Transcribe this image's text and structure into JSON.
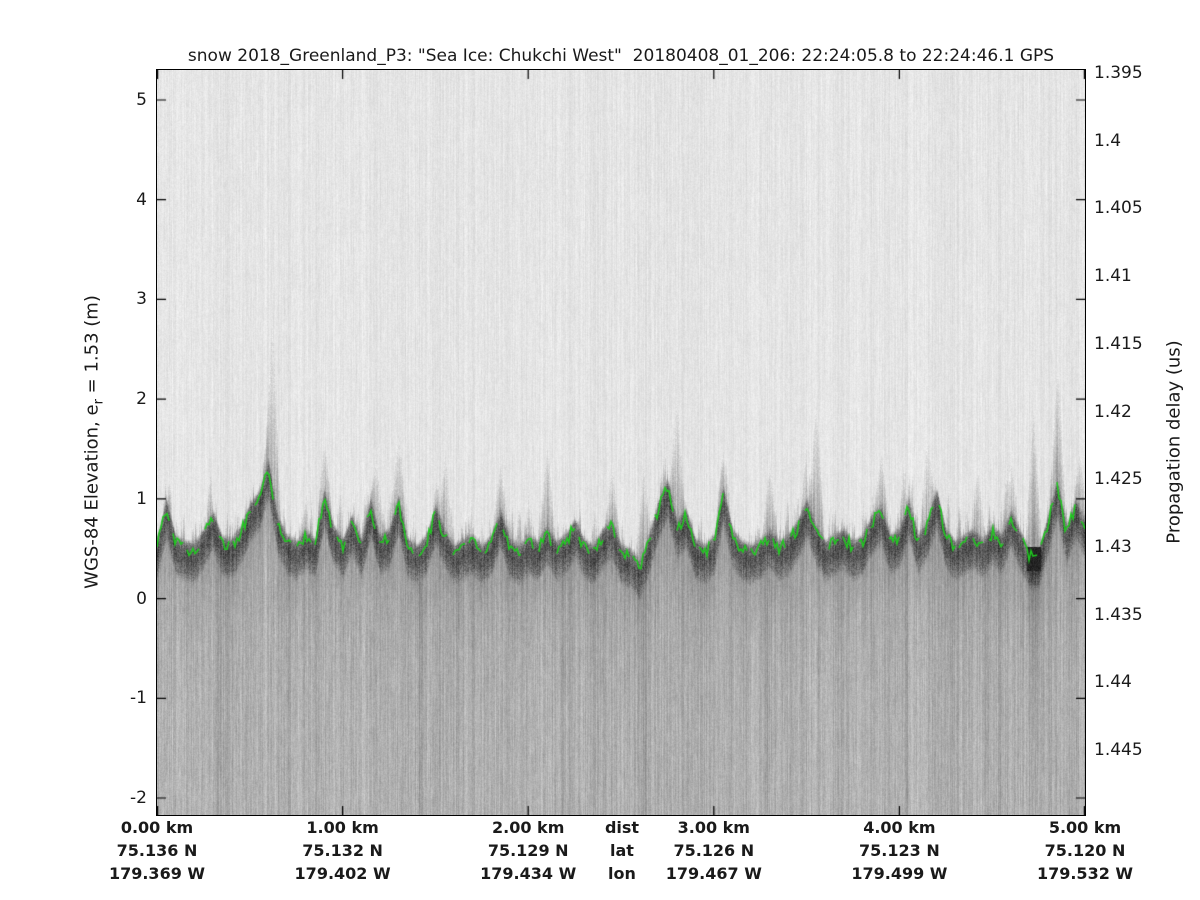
{
  "title": "snow 2018_Greenland_P3: \"Sea Ice: Chukchi West\"  20180408_01_206: 22:24:05.8 to 22:24:46.1 GPS",
  "axes": {
    "left": {
      "label_prefix": "WGS-84 Elevation, e",
      "label_sub": "r",
      "label_suffix": " = 1.53 (m)",
      "tick_labels": [
        "5",
        "4",
        "3",
        "2",
        "1",
        "0",
        "-1",
        "-2"
      ]
    },
    "right": {
      "label": "Propagation delay (us)",
      "tick_labels": [
        "1.395",
        "1.4",
        "1.405",
        "1.41",
        "1.415",
        "1.42",
        "1.425",
        "1.43",
        "1.435",
        "1.44",
        "1.445"
      ]
    },
    "bottom": {
      "headers": [
        "dist",
        "lat",
        "lon"
      ],
      "columns": [
        {
          "dist": "0.00 km",
          "lat": "75.136 N",
          "lon": "179.369 W"
        },
        {
          "dist": "1.00 km",
          "lat": "75.132 N",
          "lon": "179.402 W"
        },
        {
          "dist": "2.00 km",
          "lat": "75.129 N",
          "lon": "179.434 W"
        },
        {
          "dist": "3.00 km",
          "lat": "75.126 N",
          "lon": "179.467 W"
        },
        {
          "dist": "4.00 km",
          "lat": "75.123 N",
          "lon": "179.499 W"
        },
        {
          "dist": "5.00 km",
          "lat": "75.120 N",
          "lon": "179.532 W"
        }
      ]
    }
  },
  "chart_data": {
    "type": "heatmap",
    "title": "snow 2018_Greenland_P3: \"Sea Ice: Chukchi West\"  20180408_01_206: 22:24:05.8 to 22:24:46.1 GPS",
    "description": "Airborne snow-radar echogram over sea ice; grayscale backscatter intensity vs distance and WGS-84 elevation, with tracked surface pick drawn in green.",
    "xlabel": "dist / lat / lon",
    "ylabel_left": "WGS-84 Elevation, e_r = 1.53 (m)",
    "ylabel_right": "Propagation delay (us)",
    "xlim_km": [
      0,
      5
    ],
    "ylim_elevation_m": [
      -2.17,
      5.3
    ],
    "elevation_ticks_m": [
      5,
      4,
      3,
      2,
      1,
      0,
      -1,
      -2
    ],
    "propagation_delay_ticks_us": [
      1.395,
      1.4,
      1.405,
      1.41,
      1.415,
      1.42,
      1.425,
      1.43,
      1.435,
      1.44,
      1.445
    ],
    "distance_ticks_km": [
      0.0,
      1.0,
      2.0,
      3.0,
      4.0,
      5.0
    ],
    "latitude_at_ticks": [
      "75.136 N",
      "75.132 N",
      "75.129 N",
      "75.126 N",
      "75.123 N",
      "75.120 N"
    ],
    "longitude_at_ticks": [
      "179.369 W",
      "179.402 W",
      "179.434 W",
      "179.467 W",
      "179.499 W",
      "179.532 W"
    ],
    "grid": false,
    "legend": false,
    "surface_trace": {
      "x_start_km": 0,
      "x_step_km": 0.05,
      "elevation_m": [
        0.55,
        0.92,
        0.55,
        0.5,
        0.48,
        0.62,
        0.8,
        0.55,
        0.52,
        0.65,
        0.88,
        1.0,
        1.32,
        0.75,
        0.56,
        0.5,
        0.62,
        0.52,
        1.02,
        0.66,
        0.52,
        0.76,
        0.52,
        0.92,
        0.56,
        0.62,
        0.96,
        0.52,
        0.46,
        0.56,
        0.86,
        0.62,
        0.46,
        0.52,
        0.56,
        0.46,
        0.56,
        0.82,
        0.52,
        0.46,
        0.56,
        0.5,
        0.66,
        0.5,
        0.56,
        0.72,
        0.52,
        0.46,
        0.62,
        0.72,
        0.46,
        0.42,
        0.3,
        0.56,
        0.9,
        1.12,
        0.72,
        0.82,
        0.52,
        0.46,
        0.56,
        1.06,
        0.62,
        0.5,
        0.46,
        0.52,
        0.62,
        0.5,
        0.56,
        0.7,
        0.92,
        0.66,
        0.5,
        0.56,
        0.62,
        0.5,
        0.56,
        0.76,
        0.86,
        0.56,
        0.62,
        0.92,
        0.56,
        0.72,
        1.02,
        0.62,
        0.5,
        0.56,
        0.62,
        0.52,
        0.66,
        0.56,
        0.82,
        0.6,
        0.42,
        0.42,
        0.76,
        1.12,
        0.66,
        0.92,
        0.72
      ]
    },
    "echo_spikes_km_topm": [
      [
        0.62,
        2.75
      ],
      [
        0.9,
        1.55
      ],
      [
        1.18,
        1.4
      ],
      [
        1.3,
        1.65
      ],
      [
        1.55,
        1.45
      ],
      [
        1.85,
        1.35
      ],
      [
        2.1,
        1.55
      ],
      [
        2.45,
        1.3
      ],
      [
        2.62,
        1.35
      ],
      [
        2.8,
        2.05
      ],
      [
        3.05,
        1.5
      ],
      [
        3.3,
        1.35
      ],
      [
        3.55,
        1.95
      ],
      [
        3.9,
        1.45
      ],
      [
        4.15,
        1.6
      ],
      [
        4.42,
        1.3
      ],
      [
        4.6,
        1.35
      ],
      [
        4.72,
        1.9
      ],
      [
        4.85,
        2.3
      ],
      [
        4.97,
        1.45
      ]
    ],
    "dark_blob": {
      "x_km": [
        4.685,
        4.76
      ],
      "elevation_m": [
        0.28,
        0.52
      ]
    },
    "dark_streaks_km": [
      0.33,
      1.42,
      2.18,
      2.62,
      3.28,
      4.04,
      4.46
    ],
    "colors": {
      "surface_trace": "#1fcb1f",
      "noise_light": "#e5e5e5",
      "noise_mid": "#b2b2b2",
      "surface_band": "#6b6b6b",
      "blob": "#1c1c1c",
      "axis": "#000000",
      "text": "#1a1a1a"
    }
  }
}
